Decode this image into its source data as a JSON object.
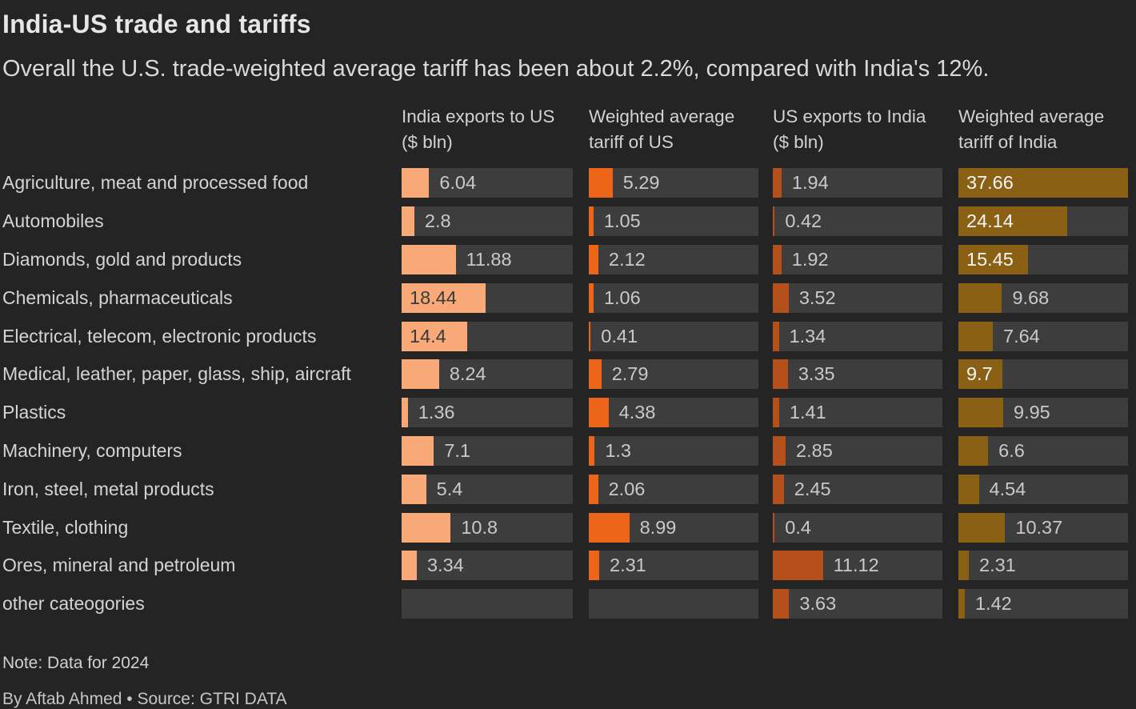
{
  "header": {
    "title": "India-US trade and tariffs",
    "subtitle": "Overall the U.S. trade-weighted average tariff has been about 2.2%, compared with India's 12%."
  },
  "footer": {
    "note": "Note: Data for 2024",
    "byline": "By Aftab Ahmed • Source: GTRI DATA"
  },
  "colors": {
    "background": "#242424",
    "track": "#3d3d3d",
    "india_exports_bar": "#f9a878",
    "us_tariff_bar": "#ec6519",
    "us_exports_bar": "#b5501a",
    "india_tariff_bar": "#8a6114",
    "outside_value_text": "#c9c9c9",
    "row_label_text": "#d4d4d4"
  },
  "chart_data": {
    "type": "bar",
    "orientation": "horizontal",
    "grid": false,
    "axis_max": 37.66,
    "columns": [
      {
        "header": "India exports to US ($ bln)",
        "color": "#f9a878",
        "inside_label_color": "#3a3a3a"
      },
      {
        "header": "Weighted average tariff of US",
        "color": "#ec6519",
        "inside_label_color": "#f5f5f5"
      },
      {
        "header": "US exports to India ($ bln)",
        "color": "#b5501a",
        "inside_label_color": "#f5f5f5"
      },
      {
        "header": "Weighted average tariff of India",
        "color": "#8a6114",
        "inside_label_color": "#f5f5f5"
      }
    ],
    "rows": [
      {
        "label": "Agriculture, meat and processed food",
        "values": [
          6.04,
          5.29,
          1.94,
          37.66
        ],
        "display": [
          "6.04",
          "5.29",
          "1.94",
          "37.66"
        ],
        "inside": [
          false,
          false,
          false,
          true
        ]
      },
      {
        "label": "Automobiles",
        "values": [
          2.8,
          1.05,
          0.42,
          24.14
        ],
        "display": [
          "2.8",
          "1.05",
          "0.42",
          "24.14"
        ],
        "inside": [
          false,
          false,
          false,
          true
        ]
      },
      {
        "label": "Diamonds, gold and products",
        "values": [
          11.88,
          2.12,
          1.92,
          15.45
        ],
        "display": [
          "11.88",
          "2.12",
          "1.92",
          "15.45"
        ],
        "inside": [
          false,
          false,
          false,
          true
        ]
      },
      {
        "label": "Chemicals, pharmaceuticals",
        "values": [
          18.44,
          1.06,
          3.52,
          9.68
        ],
        "display": [
          "18.44",
          "1.06",
          "3.52",
          "9.68"
        ],
        "inside": [
          true,
          false,
          false,
          false
        ]
      },
      {
        "label": "Electrical, telecom, electronic products",
        "values": [
          14.4,
          0.41,
          1.34,
          7.64
        ],
        "display": [
          "14.4",
          "0.41",
          "1.34",
          "7.64"
        ],
        "inside": [
          true,
          false,
          false,
          false
        ]
      },
      {
        "label": "Medical, leather, paper, glass, ship, aircraft",
        "values": [
          8.24,
          2.79,
          3.35,
          9.7
        ],
        "display": [
          "8.24",
          "2.79",
          "3.35",
          "9.7"
        ],
        "inside": [
          false,
          false,
          false,
          true
        ]
      },
      {
        "label": "Plastics",
        "values": [
          1.36,
          4.38,
          1.41,
          9.95
        ],
        "display": [
          "1.36",
          "4.38",
          "1.41",
          "9.95"
        ],
        "inside": [
          false,
          false,
          false,
          false
        ]
      },
      {
        "label": "Machinery, computers",
        "values": [
          7.1,
          1.3,
          2.85,
          6.6
        ],
        "display": [
          "7.1",
          "1.3",
          "2.85",
          "6.6"
        ],
        "inside": [
          false,
          false,
          false,
          false
        ]
      },
      {
        "label": "Iron, steel, metal products",
        "values": [
          5.4,
          2.06,
          2.45,
          4.54
        ],
        "display": [
          "5.4",
          "2.06",
          "2.45",
          "4.54"
        ],
        "inside": [
          false,
          false,
          false,
          false
        ]
      },
      {
        "label": "Textile, clothing",
        "values": [
          10.8,
          8.99,
          0.4,
          10.37
        ],
        "display": [
          "10.8",
          "8.99",
          "0.4",
          "10.37"
        ],
        "inside": [
          false,
          false,
          false,
          false
        ]
      },
      {
        "label": "Ores, mineral and petroleum",
        "values": [
          3.34,
          2.31,
          11.12,
          2.31
        ],
        "display": [
          "3.34",
          "2.31",
          "11.12",
          "2.31"
        ],
        "inside": [
          false,
          false,
          false,
          false
        ]
      },
      {
        "label": "other cateogories",
        "values": [
          null,
          null,
          3.63,
          1.42
        ],
        "display": [
          null,
          null,
          "3.63",
          "1.42"
        ],
        "inside": [
          false,
          false,
          false,
          false
        ]
      }
    ]
  }
}
